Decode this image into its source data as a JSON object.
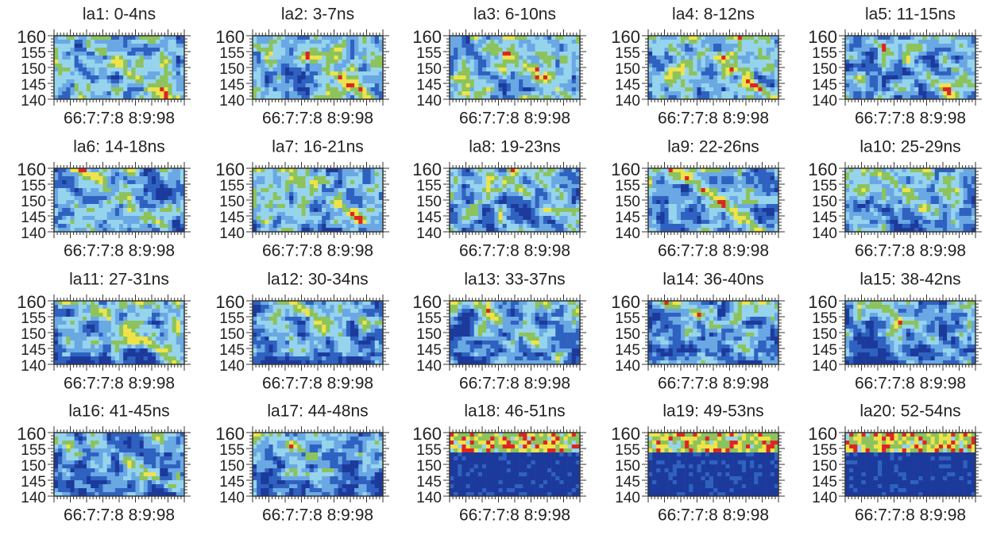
{
  "panels": [
    {
      "title": "la1: 0-4ns"
    },
    {
      "title": "la2: 3-7ns"
    },
    {
      "title": "la3: 6-10ns"
    },
    {
      "title": "la4: 8-12ns"
    },
    {
      "title": "la5: 11-15ns"
    },
    {
      "title": "la6: 14-18ns"
    },
    {
      "title": "la7: 16-21ns"
    },
    {
      "title": "la8: 19-23ns"
    },
    {
      "title": "la9: 22-26ns"
    },
    {
      "title": "la10: 25-29ns"
    },
    {
      "title": "la11: 27-31ns"
    },
    {
      "title": "la12: 30-34ns"
    },
    {
      "title": "la13: 33-37ns"
    },
    {
      "title": "la14: 36-40ns"
    },
    {
      "title": "la15: 38-42ns"
    },
    {
      "title": "la16: 41-45ns"
    },
    {
      "title": "la17: 44-48ns"
    },
    {
      "title": "la18: 46-51ns"
    },
    {
      "title": "la19: 49-53ns"
    },
    {
      "title": "la20: 52-54ns"
    }
  ],
  "y_ticks": [
    160,
    155,
    150,
    145,
    140
  ],
  "x_tick_text": "66:7:7:8 8:9:98"
}
